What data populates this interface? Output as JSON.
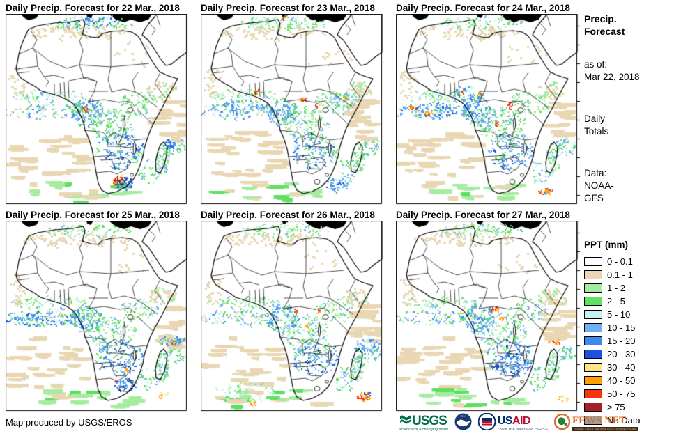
{
  "panels": [
    {
      "title": "Daily Precip. Forecast for 22 Mar., 2018",
      "seed": 11,
      "regions": [
        [
          115,
          11,
          42,
          8,
          50,
          0,
          "b2:2,b3:1,c:1,g2:1"
        ],
        [
          162,
          239,
          9,
          7,
          45,
          0,
          "o:2,r:2,y:1,dr:1"
        ],
        [
          170,
          243,
          14,
          9,
          40,
          0,
          "b2:2,b3:2,b1:1"
        ],
        [
          233,
          186,
          8,
          6,
          25,
          0,
          "b2:2,b3:1,c:1"
        ],
        [
          112,
          137,
          4,
          3,
          6,
          0,
          "o:1,r:1"
        ]
      ]
    },
    {
      "title": "Daily Precip. Forecast for 23 Mar., 2018",
      "seed": 22,
      "regions": [
        [
          100,
          12,
          45,
          9,
          55,
          0,
          "c:3,g2:2,g1:2"
        ],
        [
          78,
          112,
          3,
          3,
          8,
          0,
          "r:2,o:1"
        ],
        [
          145,
          122,
          4,
          4,
          10,
          0,
          "r:2,o:1,dr:1"
        ],
        [
          165,
          131,
          2,
          2,
          4,
          0,
          "r:1"
        ],
        [
          206,
          119,
          3,
          3,
          6,
          0,
          "o:2,r:1"
        ],
        [
          205,
          123,
          22,
          12,
          45,
          0,
          "b1:2,g2:1,c:1"
        ],
        [
          55,
          133,
          50,
          10,
          70,
          0,
          "b1:2,b2:2,c:1,g2:1"
        ],
        [
          195,
          245,
          18,
          10,
          45,
          0,
          "b1:2,b2:2,b3:1,c:1"
        ],
        [
          118,
          5,
          2,
          2,
          4,
          0,
          "r:1"
        ]
      ]
    },
    {
      "title": "Daily Precip. Forecast for 24 Mar., 2018",
      "seed": 33,
      "regions": [
        [
          20,
          134,
          8,
          3,
          10,
          0,
          "o:2,r:1,y:1"
        ],
        [
          46,
          142,
          9,
          3,
          10,
          0,
          "o:2,r:1"
        ],
        [
          96,
          110,
          3,
          3,
          7,
          0,
          "r:2,o:1"
        ],
        [
          118,
          116,
          3,
          3,
          6,
          0,
          "r:1,o:1"
        ],
        [
          163,
          130,
          3,
          5,
          10,
          0,
          "r:2,o:1"
        ],
        [
          143,
          156,
          3,
          3,
          6,
          0,
          "o:1,r:1"
        ],
        [
          213,
          254,
          9,
          5,
          20,
          0,
          "o:2,r:2,b2:1"
        ],
        [
          55,
          138,
          56,
          10,
          70,
          0,
          "b1:2,b2:2,b3:1,c:1"
        ],
        [
          100,
          115,
          25,
          12,
          50,
          0,
          "b1:2,b2:1,g2:1,c:1"
        ]
      ]
    },
    {
      "title": "Daily Precip. Forecast for 25 Mar., 2018",
      "seed": 44,
      "regions": [
        [
          55,
          142,
          60,
          10,
          80,
          0,
          "b1:2,b2:2,b3:1,c:1"
        ],
        [
          240,
          174,
          3,
          2,
          5,
          0,
          "r:2"
        ],
        [
          238,
          172,
          18,
          8,
          35,
          0,
          "b1:2,b2:2,c:1,g2:1"
        ],
        [
          173,
          212,
          2,
          2,
          4,
          0,
          "o:1"
        ],
        [
          157,
          230,
          2,
          2,
          4,
          0,
          "r:1"
        ],
        [
          224,
          250,
          8,
          3,
          8,
          0,
          "o:2,y:1"
        ],
        [
          170,
          235,
          14,
          10,
          45,
          0,
          "b2:2,b3:1,b1:1"
        ]
      ]
    },
    {
      "title": "Daily Precip. Forecast for 26 Mar., 2018",
      "seed": 55,
      "regions": [
        [
          233,
          252,
          10,
          6,
          35,
          0,
          "o:2,r:2,b3:1,y:1"
        ],
        [
          72,
          261,
          5,
          3,
          8,
          0,
          "o:2,y:1"
        ],
        [
          135,
          128,
          2,
          2,
          4,
          0,
          "r:1"
        ],
        [
          168,
          128,
          2,
          2,
          4,
          0,
          "r:1,o:1"
        ],
        [
          150,
          152,
          2,
          2,
          4,
          0,
          "o:1"
        ],
        [
          60,
          245,
          45,
          16,
          55,
          0,
          "c:2,g2:2,g1:2"
        ],
        [
          238,
          178,
          20,
          9,
          45,
          0,
          "b1:2,b2:2,c:1"
        ]
      ]
    },
    {
      "title": "Daily Precip. Forecast for 27 Mar., 2018",
      "seed": 66,
      "regions": [
        [
          140,
          127,
          5,
          4,
          14,
          0,
          "r:2,o:2"
        ],
        [
          150,
          140,
          2,
          2,
          4,
          0,
          "o:1"
        ],
        [
          225,
          174,
          8,
          3,
          9,
          0,
          "o:2,r:1"
        ],
        [
          168,
          205,
          25,
          17,
          70,
          0,
          "b2:2,b3:1,b1:2"
        ],
        [
          238,
          255,
          8,
          3,
          8,
          0,
          "o:1,y:1"
        ],
        [
          110,
          12,
          35,
          8,
          25,
          0,
          "g1:2,c:1,t:1"
        ]
      ]
    }
  ],
  "map_base": {
    "regions": [
      [
        120,
        13,
        62,
        10,
        80,
        0,
        "g1:3,g2:3,c:2,b1:1"
      ],
      [
        100,
        26,
        78,
        9,
        55,
        1,
        "t:1"
      ],
      [
        60,
        117,
        54,
        9,
        70,
        0,
        "g1:3,g2:2,c:2,b1:1"
      ],
      [
        55,
        139,
        62,
        11,
        90,
        0,
        "c:2,b1:2,b2:1,g2:2,t:1"
      ],
      [
        116,
        140,
        23,
        20,
        120,
        0,
        "g2:2,b1:3,b2:2,c:1"
      ],
      [
        150,
        158,
        35,
        24,
        130,
        0,
        "g1:3,g2:3,c:2,b1:2"
      ],
      [
        190,
        127,
        28,
        17,
        70,
        0,
        "g1:3,g2:2,b1:1,c:1"
      ],
      [
        222,
        108,
        20,
        12,
        30,
        1,
        "t:2,g1:1"
      ],
      [
        162,
        196,
        34,
        26,
        130,
        0,
        "g2:2,b1:3,b2:2,b3:1,c:1"
      ],
      [
        224,
        207,
        9,
        22,
        55,
        0,
        "g1:2,g2:2,c:1,b1:1"
      ],
      [
        243,
        190,
        15,
        13,
        40,
        0,
        "g2:2,b1:2,c:1"
      ],
      [
        62,
        205,
        62,
        42,
        30,
        2,
        "t:1"
      ],
      [
        238,
        148,
        22,
        34,
        16,
        2,
        "t:1"
      ],
      [
        105,
        253,
        85,
        15,
        16,
        2,
        "g1:2,g2:1,t:1"
      ],
      [
        205,
        227,
        16,
        18,
        30,
        0,
        "g2:2,c:1,b1:1"
      ],
      [
        15,
        98,
        12,
        22,
        16,
        1,
        "t:1"
      ],
      [
        180,
        58,
        35,
        18,
        10,
        1,
        "t:1"
      ]
    ]
  },
  "sidebar": {
    "title_line1": "Precip.",
    "title_line2": "Forecast",
    "asof_label": "as of:",
    "asof_date": "Mar 22, 2018",
    "totals_line1": "Daily",
    "totals_line2": "Totals",
    "data_label": "Data:",
    "data_line1": "NOAA-",
    "data_line2": "GFS"
  },
  "legend": {
    "title": "PPT (mm)",
    "items": [
      {
        "label": "0 - 0.1",
        "color": "#FFFFFF"
      },
      {
        "label": "0.1 - 1",
        "color": "#E8D7B2"
      },
      {
        "label": "1 - 2",
        "color": "#A6ECA0"
      },
      {
        "label": "2 - 5",
        "color": "#5FE05F"
      },
      {
        "label": "5 - 10",
        "color": "#C7F0F5"
      },
      {
        "label": "10 - 15",
        "color": "#6FB0F2"
      },
      {
        "label": "15 - 20",
        "color": "#3C8AEE"
      },
      {
        "label": "20 - 30",
        "color": "#1C50E0"
      },
      {
        "label": "30 - 40",
        "color": "#FCE488"
      },
      {
        "label": "40 - 50",
        "color": "#FFA000"
      },
      {
        "label": "50 - 75",
        "color": "#F5330F"
      },
      {
        "label": "> 75",
        "color": "#A32126"
      },
      {
        "label": "No Data",
        "color": "#A0A0A0"
      }
    ]
  },
  "footer": {
    "credit": "Map produced by USGS/EROS"
  },
  "logos": {
    "usgs": {
      "text": "USGS",
      "tagline": "science for a changing world",
      "color": "#006F45"
    },
    "noaa": {
      "name": "NOAA",
      "color": "#173A70"
    },
    "usaid": {
      "text_us": "US",
      "text_aid": "AID",
      "tagline": "FROM THE AMERICAN PEOPLE",
      "blue": "#002F6C",
      "red": "#BA0C2F"
    },
    "fewsnet": {
      "text": "FEWS NET",
      "tagline": "FAMINE EARLY WARNING SYSTEMS NETWORK",
      "color": "#D96E2D"
    }
  }
}
